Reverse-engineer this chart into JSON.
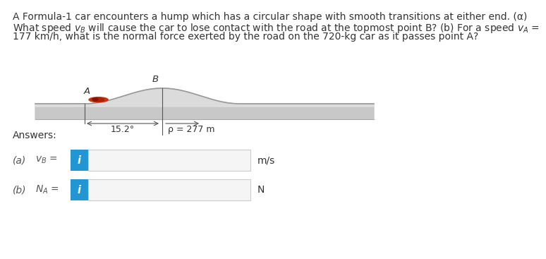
{
  "line1": "A Formula-1 car encounters a hump which has a circular shape with smooth transitions at either end. (a)",
  "line2": "What speed $v_B$ will cause the car to lose contact with the road at the topmost point B? (b) For a speed $v_A$ =",
  "line3": "177 km/h, what is the normal force exerted by the road on the 720-kg car as it passes point A?",
  "answers_label": "Answers:",
  "part_a_label": "(a)",
  "part_a_var": "$v_B$ =",
  "part_a_unit": "m/s",
  "part_b_label": "(b)",
  "part_b_var": "$N_A$ =",
  "part_b_unit": "N",
  "button_color": "#2196d3",
  "button_text": "i",
  "button_text_color": "#ffffff",
  "box_bg": "#f5f5f5",
  "box_border": "#cccccc",
  "hump_label_15": "15.2°",
  "hump_label_rho": "ρ = 277 m",
  "point_A": "A",
  "point_B": "B",
  "bg_color": "#ffffff",
  "text_color": "#333333",
  "title_fontsize": 10.5,
  "diagram_text_color": "#444444"
}
